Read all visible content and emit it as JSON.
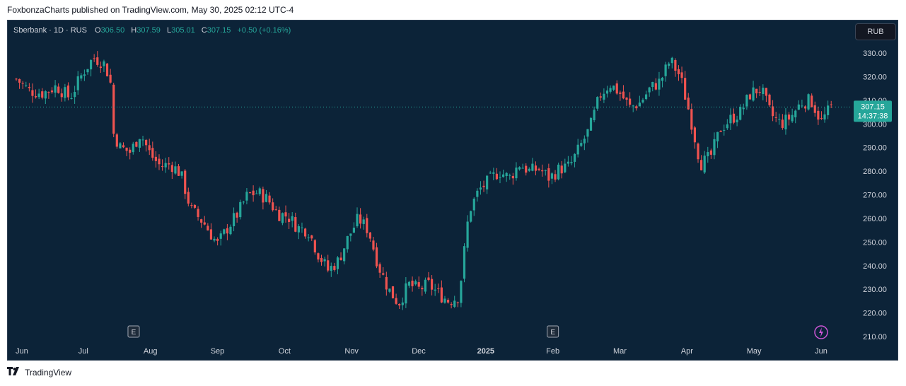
{
  "header": {
    "published_text": "FoxbonzaCharts published on TradingView.com, May 30, 2025 02:12 UTC-4"
  },
  "legend": {
    "symbol": "Sberbank · 1D · RUS",
    "o_label": "O",
    "o_value": "306.50",
    "h_label": "H",
    "h_value": "307.59",
    "l_label": "L",
    "l_value": "305.01",
    "c_label": "C",
    "c_value": "307.15",
    "change": "+0.50 (+0.16%)"
  },
  "currency_button": "RUB",
  "price_tag": {
    "price": "307.15",
    "countdown": "14:37:38",
    "value": 307.15
  },
  "footer": {
    "brand": "TradingView",
    "logo_icon": "tradingview-logo-icon"
  },
  "colors": {
    "background": "#0c2338",
    "up": "#26a69a",
    "down": "#ef5350",
    "axis_text": "#d1d4dc",
    "price_tag": "#26a69a",
    "flash": "#ce55d6"
  },
  "chart_data": {
    "type": "candlestick",
    "y_axis_ticks": [
      "330.00",
      "320.00",
      "310.00",
      "300.00",
      "290.00",
      "280.00",
      "270.00",
      "260.00",
      "250.00",
      "240.00",
      "230.00",
      "220.00",
      "210.00"
    ],
    "ylim": [
      210,
      330
    ],
    "x_axis_labels": [
      "Jun",
      "Jul",
      "Aug",
      "Sep",
      "Oct",
      "Nov",
      "Dec",
      "2025",
      "Feb",
      "Mar",
      "Apr",
      "May",
      "Jun"
    ],
    "markers": [
      {
        "type": "earnings",
        "label": "E",
        "month_index": 1.75
      },
      {
        "type": "earnings",
        "label": "E",
        "month_index": 8.0
      },
      {
        "type": "flash",
        "label": "⚡",
        "month_index": 12.0
      }
    ],
    "close_series": [
      [
        0,
        319
      ],
      [
        0.2,
        314
      ],
      [
        0.4,
        313
      ],
      [
        0.6,
        316
      ],
      [
        0.8,
        311
      ],
      [
        1.0,
        322
      ],
      [
        1.15,
        328
      ],
      [
        1.3,
        326
      ],
      [
        1.4,
        319
      ],
      [
        1.45,
        296
      ],
      [
        1.55,
        290
      ],
      [
        1.7,
        288
      ],
      [
        1.85,
        296
      ],
      [
        2.0,
        287
      ],
      [
        2.15,
        282
      ],
      [
        2.3,
        283
      ],
      [
        2.45,
        279
      ],
      [
        2.6,
        264
      ],
      [
        2.8,
        258
      ],
      [
        3.0,
        249
      ],
      [
        3.15,
        256
      ],
      [
        3.3,
        262
      ],
      [
        3.45,
        270
      ],
      [
        3.6,
        271
      ],
      [
        3.75,
        268
      ],
      [
        3.9,
        262
      ],
      [
        4.05,
        261
      ],
      [
        4.2,
        256
      ],
      [
        4.35,
        255
      ],
      [
        4.5,
        245
      ],
      [
        4.65,
        238
      ],
      [
        4.8,
        242
      ],
      [
        4.95,
        252
      ],
      [
        5.1,
        260
      ],
      [
        5.25,
        255
      ],
      [
        5.4,
        240
      ],
      [
        5.55,
        230
      ],
      [
        5.7,
        224
      ],
      [
        5.85,
        232
      ],
      [
        6.0,
        230
      ],
      [
        6.15,
        232
      ],
      [
        6.3,
        228
      ],
      [
        6.45,
        225
      ],
      [
        6.6,
        227
      ],
      [
        6.75,
        263
      ],
      [
        6.9,
        272
      ],
      [
        7.05,
        276
      ],
      [
        7.2,
        280
      ],
      [
        7.35,
        277
      ],
      [
        7.5,
        283
      ],
      [
        7.65,
        280
      ],
      [
        7.8,
        281
      ],
      [
        7.95,
        277
      ],
      [
        8.1,
        281
      ],
      [
        8.25,
        282
      ],
      [
        8.4,
        290
      ],
      [
        8.55,
        298
      ],
      [
        8.7,
        312
      ],
      [
        8.85,
        317
      ],
      [
        9.0,
        313
      ],
      [
        9.15,
        307
      ],
      [
        9.3,
        309
      ],
      [
        9.45,
        315
      ],
      [
        9.6,
        318
      ],
      [
        9.75,
        327
      ],
      [
        9.9,
        320
      ],
      [
        10.05,
        303
      ],
      [
        10.2,
        283
      ],
      [
        10.35,
        286
      ],
      [
        10.5,
        298
      ],
      [
        10.65,
        302
      ],
      [
        10.8,
        305
      ],
      [
        10.95,
        313
      ],
      [
        11.1,
        315
      ],
      [
        11.25,
        304
      ],
      [
        11.4,
        300
      ],
      [
        11.55,
        303
      ],
      [
        11.7,
        309
      ],
      [
        11.85,
        310
      ],
      [
        12.0,
        301
      ],
      [
        12.15,
        307
      ]
    ]
  }
}
